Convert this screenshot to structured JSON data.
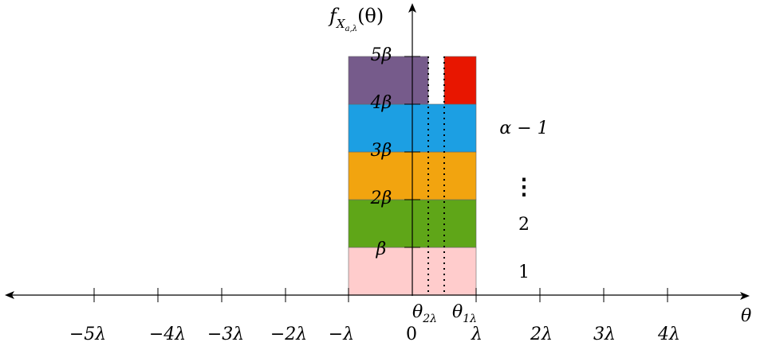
{
  "axes": {
    "y_label": "f",
    "y_label_sub": "X",
    "y_label_subsub": "a,λ",
    "y_label_arg": "(θ)",
    "x_label": "θ"
  },
  "x_ticks": [
    "−5λ",
    "−4λ",
    "−3λ",
    "−2λ",
    "−λ",
    "0",
    "λ",
    "2λ",
    "3λ",
    "4λ"
  ],
  "y_ticks": [
    "β",
    "2β",
    "3β",
    "4β",
    "5β"
  ],
  "markers": {
    "theta2_main": "θ",
    "theta2_sub": "2λ",
    "theta1_main": "θ",
    "theta1_sub": "1λ"
  },
  "layer_labels": [
    "1",
    "2",
    "⋮",
    "α − 1"
  ],
  "colors": {
    "layer1": "#ffcccc",
    "layer2": "#5fa618",
    "layer3": "#f2a40f",
    "layer4": "#1c9fe3",
    "layer5": "#765b8b",
    "top_right": "#e81600"
  }
}
